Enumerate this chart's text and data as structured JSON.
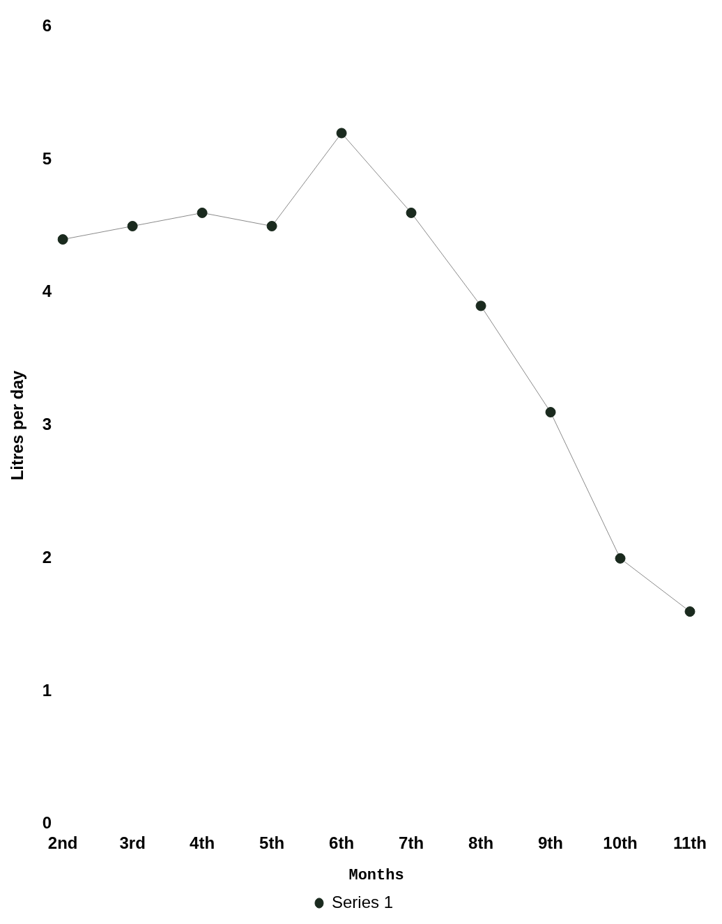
{
  "chart_data": {
    "type": "line",
    "xlabel": "Months",
    "ylabel": "Litres per day",
    "categories": [
      "2nd",
      "3rd",
      "4th",
      "5th",
      "6th",
      "7th",
      "8th",
      "9th",
      "10th",
      "11th"
    ],
    "series": [
      {
        "name": "Series 1",
        "color": "#1a2a1e",
        "values": [
          4.4,
          4.5,
          4.6,
          4.5,
          5.2,
          4.6,
          3.9,
          3.1,
          2.0,
          1.6
        ]
      }
    ],
    "ylim": [
      0,
      6
    ],
    "yticks": [
      0,
      1,
      2,
      3,
      4,
      5,
      6
    ],
    "grid": false,
    "legend": "bottom",
    "marker": "circle",
    "line_style": "solid"
  }
}
